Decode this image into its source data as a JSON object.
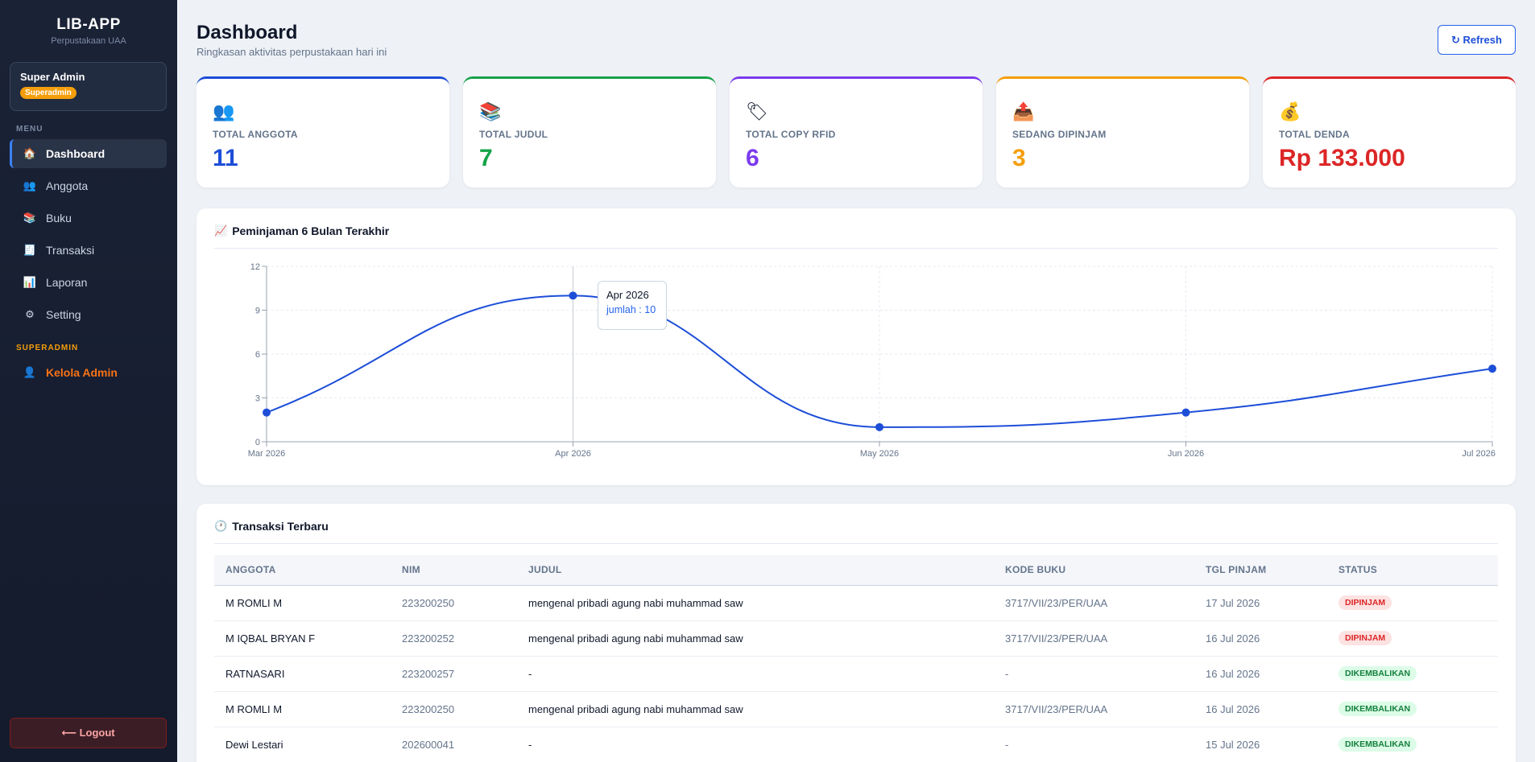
{
  "brand": {
    "title": "LIB-APP",
    "subtitle": "Perpustakaan UAA"
  },
  "user": {
    "name": "Super Admin",
    "role": "Superadmin"
  },
  "sidebar": {
    "menu_label": "MENU",
    "items": [
      {
        "label": "Dashboard",
        "icon": "home-icon"
      },
      {
        "label": "Anggota",
        "icon": "members-icon"
      },
      {
        "label": "Buku",
        "icon": "books-icon"
      },
      {
        "label": "Transaksi",
        "icon": "receipt-icon"
      },
      {
        "label": "Laporan",
        "icon": "report-chart-icon"
      },
      {
        "label": "Setting",
        "icon": "gear-icon"
      }
    ],
    "super_label": "SUPERADMIN",
    "admin_item": {
      "label": "Kelola Admin",
      "icon": "admin-user-icon"
    },
    "logout": "⟵ Logout"
  },
  "header": {
    "title": "Dashboard",
    "subtitle": "Ringkasan aktivitas perpustakaan hari ini",
    "refresh": "↻ Refresh"
  },
  "stats": [
    {
      "label": "TOTAL ANGGOTA",
      "value": "11",
      "color": "#1d4ed8",
      "icon": "members-icon"
    },
    {
      "label": "TOTAL JUDUL",
      "value": "7",
      "color": "#16a34a",
      "icon": "books-icon"
    },
    {
      "label": "TOTAL COPY RFID",
      "value": "6",
      "color": "#7c3aed",
      "icon": "tag-icon"
    },
    {
      "label": "SEDANG DIPINJAM",
      "value": "3",
      "color": "#f59e0b",
      "icon": "outbox-icon"
    },
    {
      "label": "TOTAL DENDA",
      "value": "Rp 133.000",
      "color": "#dc2626",
      "icon": "money-bag-icon"
    }
  ],
  "chart_panel": {
    "title": "Peminjaman 6 Bulan Terakhir"
  },
  "chart_data": {
    "type": "line",
    "categories": [
      "Mar 2026",
      "Apr 2026",
      "May 2026",
      "Jun 2026",
      "Jul 2026"
    ],
    "series": [
      {
        "name": "jumlah",
        "values": [
          2,
          10,
          1,
          2,
          5
        ]
      }
    ],
    "yticks": [
      0,
      3,
      6,
      9,
      12
    ],
    "ylim": [
      0,
      12
    ],
    "grid": true,
    "color": "#1d4ed8",
    "tooltip": {
      "title": "Apr 2026",
      "text": "jumlah : 10"
    }
  },
  "table_panel": {
    "title": "Transaksi Terbaru",
    "columns": [
      "ANGGOTA",
      "NIM",
      "JUDUL",
      "KODE BUKU",
      "TGL PINJAM",
      "STATUS"
    ],
    "rows": [
      {
        "anggota": "M ROMLI M",
        "nim": "223200250",
        "judul": "mengenal pribadi agung nabi muhammad saw",
        "kode": "3717/VII/23/PER/UAA",
        "tgl": "17 Jul 2026",
        "status": "DIPINJAM"
      },
      {
        "anggota": "M IQBAL BRYAN F",
        "nim": "223200252",
        "judul": "mengenal pribadi agung nabi muhammad saw",
        "kode": "3717/VII/23/PER/UAA",
        "tgl": "16 Jul 2026",
        "status": "DIPINJAM"
      },
      {
        "anggota": "RATNASARI",
        "nim": "223200257",
        "judul": "-",
        "kode": "-",
        "tgl": "16 Jul 2026",
        "status": "DIKEMBALIKAN"
      },
      {
        "anggota": "M ROMLI M",
        "nim": "223200250",
        "judul": "mengenal pribadi agung nabi muhammad saw",
        "kode": "3717/VII/23/PER/UAA",
        "tgl": "16 Jul 2026",
        "status": "DIKEMBALIKAN"
      },
      {
        "anggota": "Dewi Lestari",
        "nim": "202600041",
        "judul": "-",
        "kode": "-",
        "tgl": "15 Jul 2026",
        "status": "DIKEMBALIKAN"
      }
    ]
  }
}
